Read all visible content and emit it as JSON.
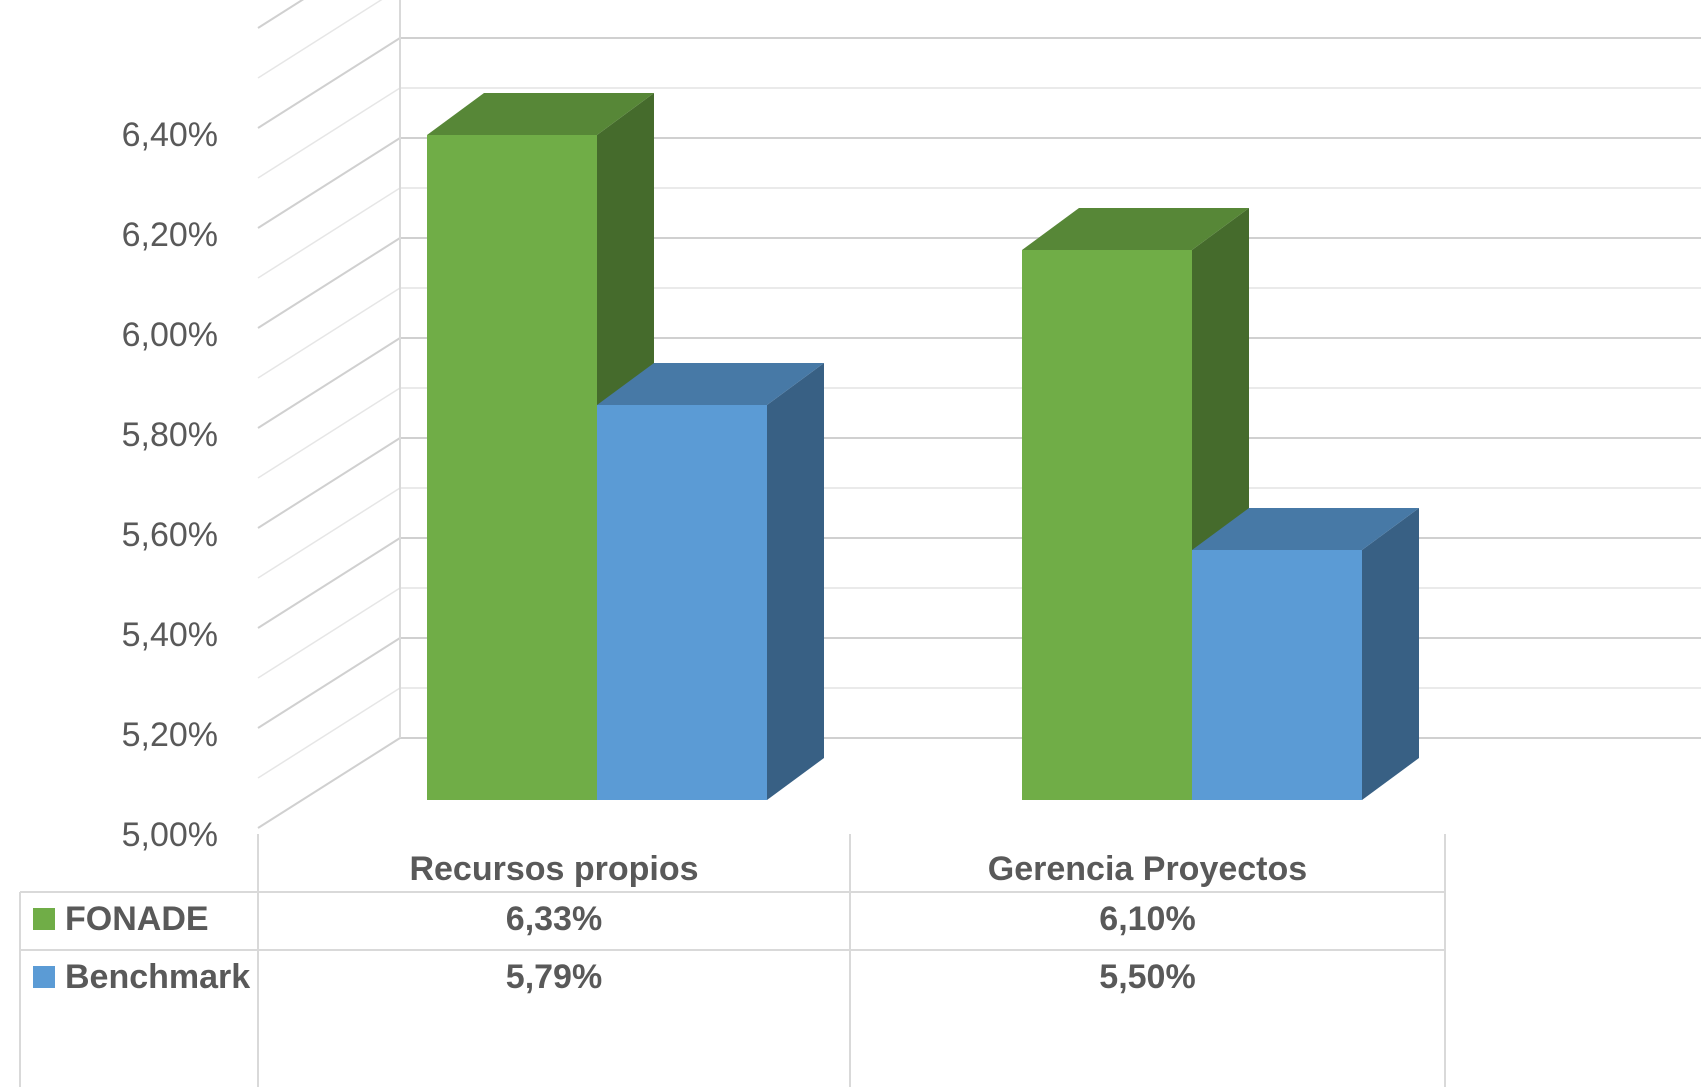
{
  "chart_data": {
    "type": "bar",
    "title": "",
    "xlabel": "",
    "ylabel": "",
    "categories": [
      "Recursos propios",
      "Gerencia Proyectos"
    ],
    "series": [
      {
        "name": "FONADE",
        "values": [
          6.33,
          6.1
        ],
        "labels": [
          "6,33%",
          "6,10%"
        ],
        "color": "#70AD47"
      },
      {
        "name": "Benchmark",
        "values": [
          5.79,
          5.5
        ],
        "labels": [
          "5,79%",
          "5,50%"
        ],
        "color": "#5B9BD5"
      }
    ],
    "ylim": [
      5.0,
      6.4
    ],
    "yticks": [
      "5,00%",
      "5,20%",
      "5,40%",
      "5,60%",
      "5,80%",
      "6,00%",
      "6,20%",
      "6,40%"
    ],
    "grid": true,
    "style": "3d-clustered-column",
    "data_table": true,
    "legend_placement": "data-table"
  }
}
